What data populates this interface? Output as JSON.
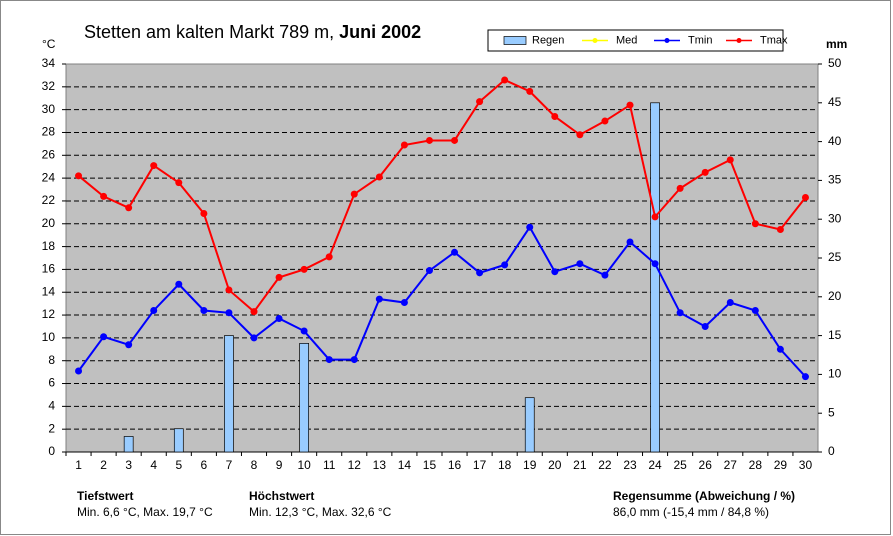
{
  "chart_data": {
    "type": "combo",
    "title": "Stetten am kalten Markt  789 m,",
    "title_bold": "Juni 2002",
    "y_label": "°C",
    "y2_label": "mm",
    "categories": [
      1,
      2,
      3,
      4,
      5,
      6,
      7,
      8,
      9,
      10,
      11,
      12,
      13,
      14,
      15,
      16,
      17,
      18,
      19,
      20,
      21,
      22,
      23,
      24,
      25,
      26,
      27,
      28,
      29,
      30
    ],
    "ylim": [
      0,
      34
    ],
    "yticks": [
      0,
      2,
      4,
      6,
      8,
      10,
      12,
      14,
      16,
      18,
      20,
      22,
      24,
      26,
      28,
      30,
      32,
      34
    ],
    "y2lim": [
      0,
      50
    ],
    "y2ticks": [
      0,
      5,
      10,
      15,
      20,
      25,
      30,
      35,
      40,
      45,
      50
    ],
    "grid": true,
    "legend": "top-right",
    "series": [
      {
        "name": "Regen",
        "type": "bar",
        "axis": "y2",
        "color": "#99ccff",
        "values": [
          0,
          0,
          2.0,
          0,
          3.0,
          0,
          15.0,
          0,
          0,
          14.0,
          0,
          0,
          0,
          0,
          0,
          0,
          0,
          0,
          7.0,
          0,
          0,
          0,
          0,
          45.0,
          0,
          0,
          0,
          0,
          0,
          0
        ]
      },
      {
        "name": "Med",
        "type": "line",
        "color": "#ffff00",
        "values": [
          null,
          null,
          null,
          null,
          null,
          null,
          null,
          null,
          null,
          null,
          null,
          null,
          null,
          null,
          null,
          null,
          null,
          null,
          null,
          null,
          null,
          null,
          null,
          null,
          null,
          null,
          null,
          null,
          null,
          null
        ]
      },
      {
        "name": "Tmin",
        "type": "line",
        "color": "#0000ff",
        "values": [
          7.1,
          10.1,
          9.4,
          12.4,
          14.7,
          12.4,
          12.2,
          10.0,
          11.7,
          10.6,
          8.1,
          8.1,
          13.4,
          13.1,
          15.9,
          17.5,
          15.7,
          16.4,
          19.7,
          15.8,
          16.5,
          15.5,
          18.4,
          16.5,
          12.2,
          11.0,
          13.1,
          12.4,
          9.0,
          6.6
        ]
      },
      {
        "name": "Tmax",
        "type": "line",
        "color": "#ff0000",
        "values": [
          24.2,
          22.4,
          21.4,
          25.1,
          23.6,
          20.9,
          14.2,
          12.3,
          15.3,
          16.0,
          17.1,
          22.6,
          24.1,
          26.9,
          27.3,
          27.3,
          30.7,
          32.6,
          31.6,
          29.4,
          27.8,
          29.0,
          30.4,
          20.6,
          23.1,
          24.5,
          25.6,
          20.0,
          19.5,
          22.3
        ]
      }
    ],
    "annotations": [
      {
        "title": "Tiefstwert",
        "text": "Min. 6,6 °C, Max. 19,7 °C"
      },
      {
        "title": "Höchstwert",
        "text": "Min. 12,3 °C, Max. 32,6 °C"
      },
      {
        "title": "Regensumme (Abweichung / %)",
        "text": "86,0 mm (-15,4 mm / 84,8 %)"
      }
    ]
  }
}
